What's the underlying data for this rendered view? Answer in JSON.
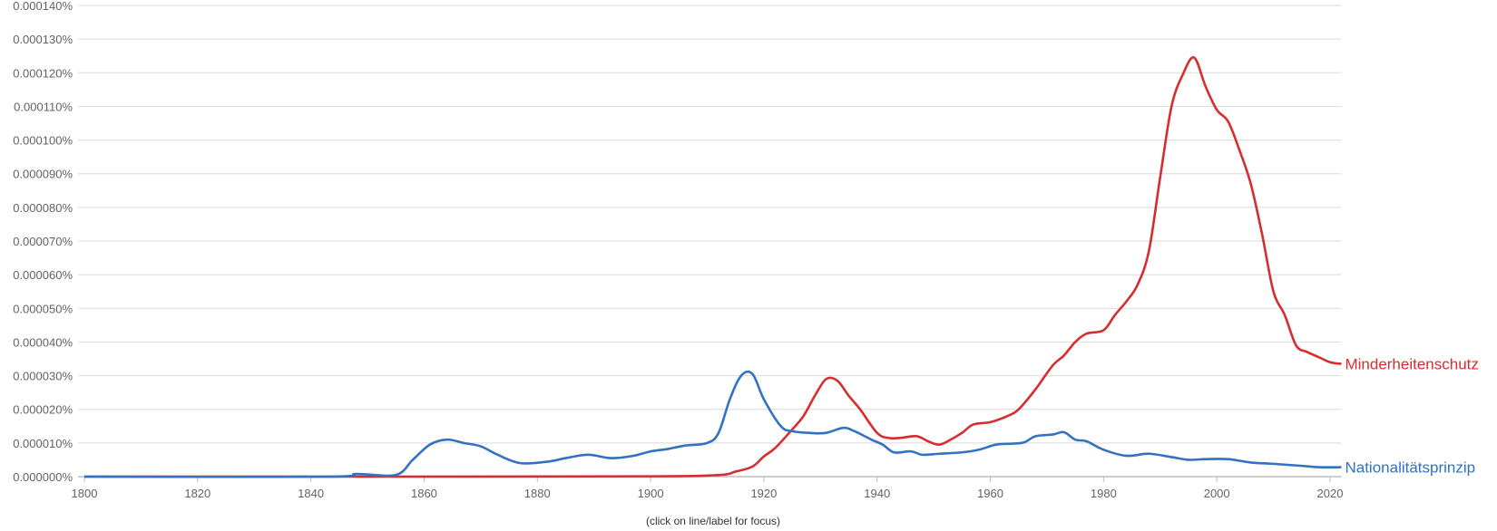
{
  "footer": {
    "hint": "(click on line/label for focus)"
  },
  "chart_data": {
    "type": "line",
    "title": "",
    "xlabel": "",
    "ylabel": "",
    "xlim": [
      1800,
      2022
    ],
    "ylim": [
      0,
      0.00014
    ],
    "y_tick_labels": [
      "0.000000%",
      "0.000010%",
      "0.000020%",
      "0.000030%",
      "0.000040%",
      "0.000050%",
      "0.000060%",
      "0.000070%",
      "0.000080%",
      "0.000090%",
      "0.000100%",
      "0.000110%",
      "0.000120%",
      "0.000130%",
      "0.000140%"
    ],
    "x_tick_labels": [
      "1800",
      "1820",
      "1840",
      "1860",
      "1880",
      "1900",
      "1920",
      "1940",
      "1960",
      "1980",
      "2000",
      "2020"
    ],
    "grid": true,
    "legend_position": "inline-right",
    "units_note": "values are in units of 1e-6 percent (0.000001%)",
    "series": [
      {
        "name": "Minderheitenschutz",
        "color": "#d62d2f",
        "x": [
          1800,
          1850,
          1900,
          1912,
          1915,
          1918,
          1920,
          1922,
          1925,
          1927,
          1929,
          1931,
          1933,
          1935,
          1937,
          1940,
          1942,
          1944,
          1947,
          1949,
          1951,
          1953,
          1955,
          1957,
          1960,
          1963,
          1965,
          1968,
          1971,
          1973,
          1975,
          1977,
          1980,
          1982,
          1984,
          1986,
          1988,
          1990,
          1992,
          1994,
          1996,
          1998,
          2000,
          2002,
          2004,
          2006,
          2008,
          2010,
          2012,
          2014,
          2016,
          2018,
          2020,
          2022
        ],
        "values": [
          0,
          0,
          0.01,
          0.05,
          0.15,
          0.3,
          0.6,
          0.85,
          1.4,
          1.8,
          2.4,
          2.9,
          2.85,
          2.4,
          2.0,
          1.3,
          1.15,
          1.15,
          1.2,
          1.05,
          0.95,
          1.1,
          1.3,
          1.55,
          1.62,
          1.8,
          2.0,
          2.6,
          3.3,
          3.6,
          4.0,
          4.25,
          4.35,
          4.8,
          5.2,
          5.7,
          6.7,
          8.9,
          11.0,
          11.95,
          12.45,
          11.6,
          10.9,
          10.55,
          9.7,
          8.7,
          7.2,
          5.5,
          4.8,
          3.9,
          3.7,
          3.55,
          3.4,
          3.35
        ]
      },
      {
        "name": "Nationalitätsprinzip",
        "color": "#3371c1",
        "x": [
          1800,
          1843,
          1848,
          1855,
          1858,
          1861,
          1864,
          1867,
          1870,
          1873,
          1877,
          1882,
          1885,
          1889,
          1893,
          1897,
          1900,
          1903,
          1906,
          1910,
          1912,
          1914,
          1916,
          1918,
          1920,
          1923,
          1925,
          1928,
          1931,
          1934,
          1936,
          1939,
          1941,
          1943,
          1946,
          1948,
          1951,
          1955,
          1958,
          1961,
          1964,
          1966,
          1968,
          1971,
          1973,
          1975,
          1977,
          1980,
          1984,
          1988,
          1992,
          1995,
          1998,
          2002,
          2006,
          2010,
          2015,
          2018,
          2022
        ],
        "values": [
          0,
          0,
          0.08,
          0.05,
          0.5,
          0.95,
          1.1,
          1.0,
          0.9,
          0.65,
          0.4,
          0.45,
          0.55,
          0.65,
          0.55,
          0.62,
          0.75,
          0.82,
          0.92,
          1.0,
          1.3,
          2.3,
          3.0,
          3.05,
          2.3,
          1.5,
          1.35,
          1.3,
          1.3,
          1.45,
          1.35,
          1.1,
          0.95,
          0.72,
          0.75,
          0.65,
          0.68,
          0.72,
          0.8,
          0.95,
          0.98,
          1.02,
          1.2,
          1.25,
          1.32,
          1.1,
          1.05,
          0.8,
          0.62,
          0.68,
          0.58,
          0.5,
          0.52,
          0.52,
          0.42,
          0.38,
          0.32,
          0.28,
          0.28
        ]
      }
    ]
  }
}
